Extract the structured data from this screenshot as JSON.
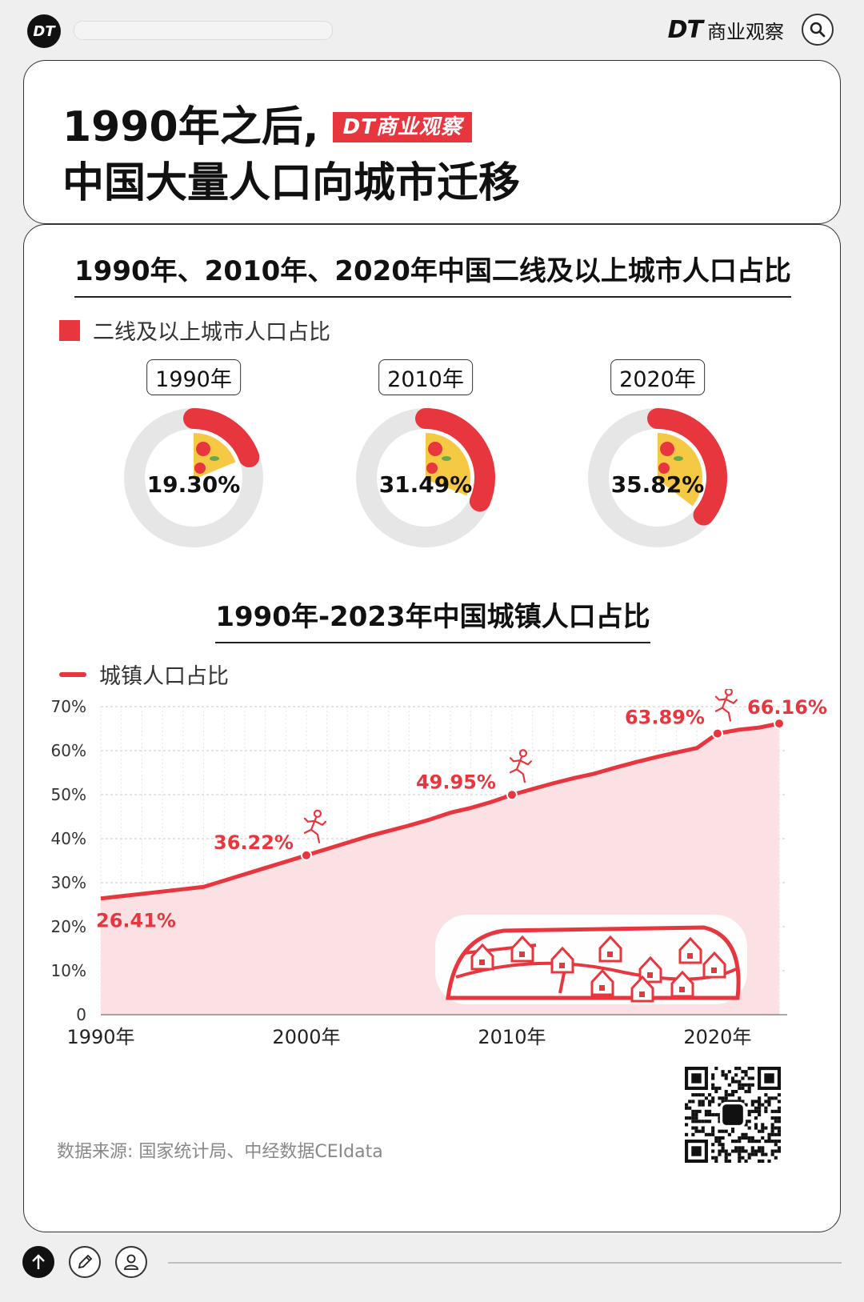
{
  "topbar": {
    "badge": "DT",
    "brand_mark": "DT",
    "brand_text": "商业观察"
  },
  "title": {
    "line1": "1990年之后,",
    "logo_text": "DT商业观察",
    "line2": "中国大量人口向城市迁移"
  },
  "section1": {
    "title": "1990年、2010年、2020年中国二线及以上城市人口占比",
    "legend": "二线及以上城市人口占比"
  },
  "section2": {
    "title": "1990年-2023年中国城镇人口占比",
    "legend": "城镇人口占比"
  },
  "source": "数据来源: 国家统计局、中经数据CEIdata",
  "colors": {
    "accent": "#e8363f",
    "track": "#e6e6e6",
    "area": "#fbe1e3"
  },
  "chart_data": [
    {
      "type": "pie",
      "series_name": "二线及以上城市人口占比",
      "items": [
        {
          "year": "1990年",
          "value": 19.3,
          "label": "19.30%"
        },
        {
          "year": "2010年",
          "value": 31.49,
          "label": "31.49%"
        },
        {
          "year": "2020年",
          "value": 35.82,
          "label": "35.82%"
        }
      ]
    },
    {
      "type": "area",
      "series_name": "城镇人口占比",
      "x": [
        1990,
        1991,
        1992,
        1993,
        1994,
        1995,
        1996,
        1997,
        1998,
        1999,
        2000,
        2001,
        2002,
        2003,
        2004,
        2005,
        2006,
        2007,
        2008,
        2009,
        2010,
        2011,
        2012,
        2013,
        2014,
        2015,
        2016,
        2017,
        2018,
        2019,
        2020,
        2021,
        2022,
        2023
      ],
      "y": [
        26.41,
        26.94,
        27.46,
        27.99,
        28.51,
        29.04,
        30.48,
        31.91,
        33.35,
        34.78,
        36.22,
        37.66,
        39.09,
        40.53,
        41.76,
        42.99,
        44.34,
        45.89,
        46.99,
        48.34,
        49.95,
        51.27,
        52.57,
        53.73,
        54.77,
        56.1,
        57.35,
        58.52,
        59.58,
        60.6,
        63.89,
        64.72,
        65.22,
        66.16
      ],
      "annotations": [
        {
          "x": 1990,
          "y": 26.41,
          "label": "26.41%"
        },
        {
          "x": 2000,
          "y": 36.22,
          "label": "36.22%"
        },
        {
          "x": 2010,
          "y": 49.95,
          "label": "49.95%"
        },
        {
          "x": 2020,
          "y": 63.89,
          "label": "63.89%"
        },
        {
          "x": 2023,
          "y": 66.16,
          "label": "66.16%"
        }
      ],
      "ylim": [
        0,
        70
      ],
      "yticks": [
        "0",
        "10%",
        "20%",
        "30%",
        "40%",
        "50%",
        "60%",
        "70%"
      ],
      "xticks": [
        "1990年",
        "2000年",
        "2010年",
        "2020年"
      ],
      "grid": true,
      "legend_position": "top-left"
    }
  ]
}
